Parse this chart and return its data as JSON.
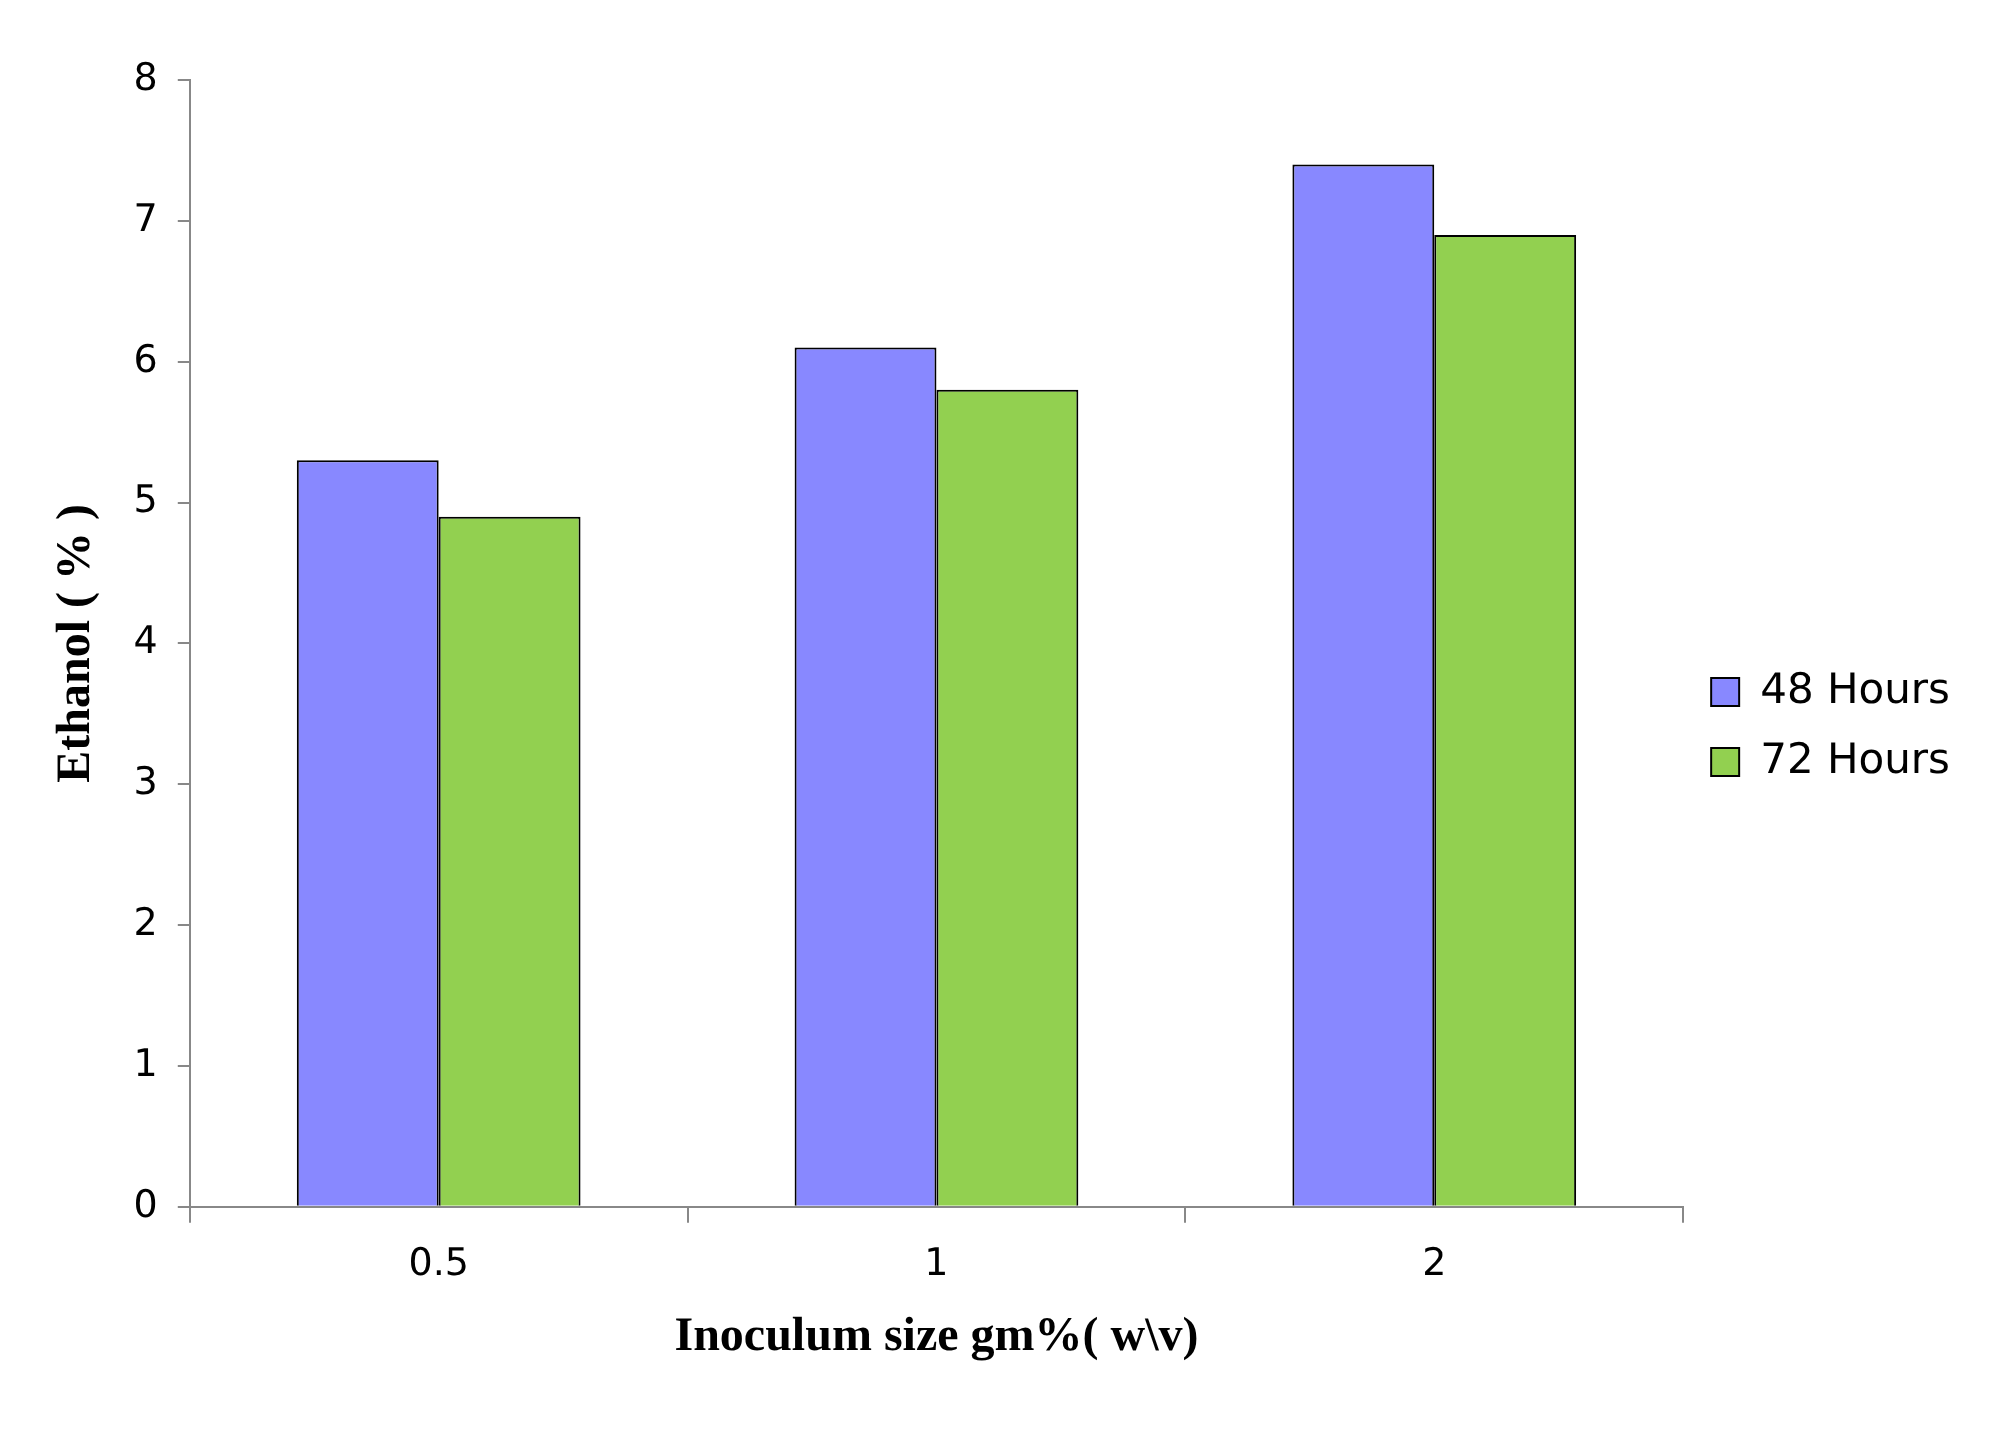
{
  "chart_data": {
    "type": "bar",
    "xlabel": "Inoculum size gm%( w\\v)",
    "ylabel": "Ethanol ( % )",
    "categories": [
      "0.5",
      "1",
      "2"
    ],
    "series": [
      {
        "name": "48 Hours",
        "color": "#8888ff",
        "values": [
          5.3,
          6.1,
          7.4
        ]
      },
      {
        "name": "72 Hours",
        "color": "#92d050",
        "values": [
          4.9,
          5.8,
          6.9
        ]
      }
    ],
    "ylim": [
      0,
      8
    ],
    "yticks": [
      0,
      1,
      2,
      3,
      4,
      5,
      6,
      7,
      8
    ],
    "grid": false,
    "legend": "right"
  }
}
